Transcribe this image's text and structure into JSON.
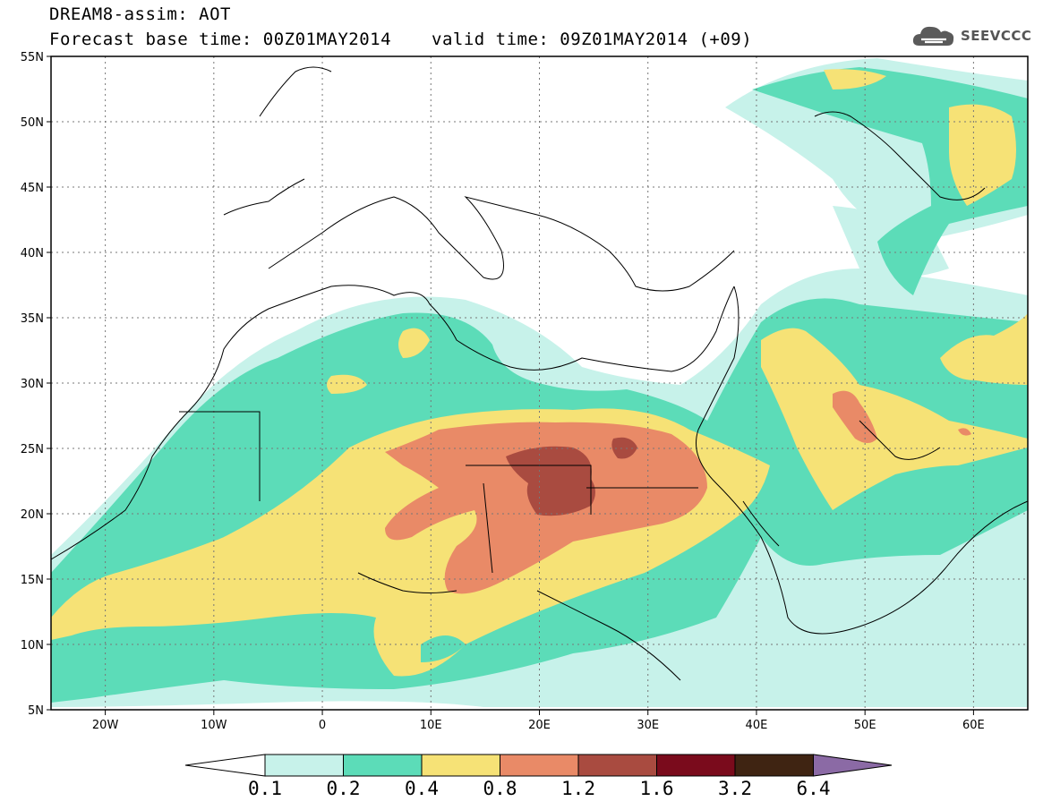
{
  "header": {
    "title": "DREAM8-assim: AOT",
    "base_time": "Forecast base time: 00Z01MAY2014",
    "valid_time": "valid time: 09Z01MAY2014 (+09)"
  },
  "logo": {
    "text": "SEEVCCC",
    "icon": "cloud-icon"
  },
  "map": {
    "lon_range": [
      -25,
      65
    ],
    "lat_range": [
      5,
      55
    ],
    "lon_ticks": [
      {
        "v": -20,
        "label": "20W"
      },
      {
        "v": -10,
        "label": "10W"
      },
      {
        "v": 0,
        "label": "0"
      },
      {
        "v": 10,
        "label": "10E"
      },
      {
        "v": 20,
        "label": "20E"
      },
      {
        "v": 30,
        "label": "30E"
      },
      {
        "v": 40,
        "label": "40E"
      },
      {
        "v": 50,
        "label": "50E"
      },
      {
        "v": 60,
        "label": "60E"
      }
    ],
    "lat_ticks": [
      {
        "v": 5,
        "label": "5N"
      },
      {
        "v": 10,
        "label": "10N"
      },
      {
        "v": 15,
        "label": "15N"
      },
      {
        "v": 20,
        "label": "20N"
      },
      {
        "v": 25,
        "label": "25N"
      },
      {
        "v": 30,
        "label": "30N"
      },
      {
        "v": 35,
        "label": "35N"
      },
      {
        "v": 40,
        "label": "40N"
      },
      {
        "v": 45,
        "label": "45N"
      },
      {
        "v": 50,
        "label": "50N"
      },
      {
        "v": 55,
        "label": "55N"
      }
    ],
    "gridlines": "dotted"
  },
  "colorbar": {
    "labels": [
      "0.1",
      "0.2",
      "0.4",
      "0.8",
      "1.2",
      "1.6",
      "3.2",
      "6.4"
    ],
    "colors": [
      "#c7f2ea",
      "#5cdcb8",
      "#f6e276",
      "#e98a67",
      "#a94b40",
      "#7a0b1c",
      "#3f2412",
      "#8b6aa5"
    ],
    "under_color": "#ffffff"
  }
}
